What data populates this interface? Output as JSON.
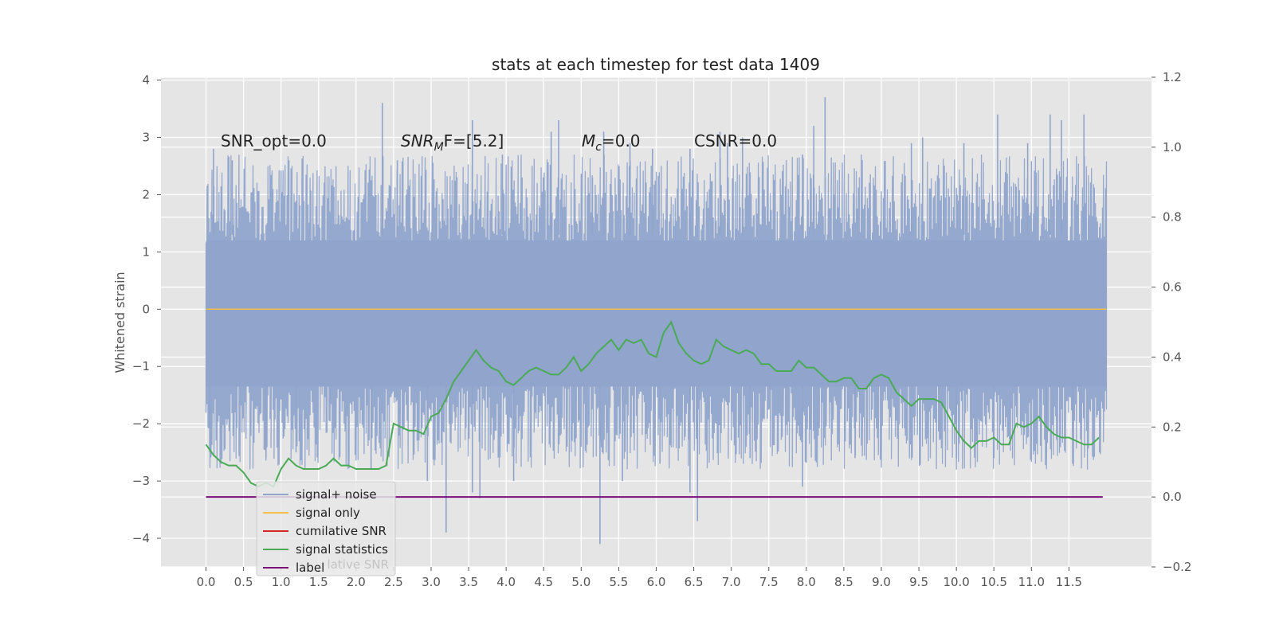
{
  "chart_data": {
    "type": "line",
    "title": "stats at each timestep for test data 1409",
    "ylabel_left": "Whitened strain",
    "ylabel_right": "",
    "xlabel": "",
    "xlim": [
      -0.6,
      12.6
    ],
    "ylim_left": [
      -4.5,
      4.05
    ],
    "ylim_right": [
      -0.2,
      1.2
    ],
    "x_ticks": [
      "0.0",
      "0.5",
      "1.0",
      "1.5",
      "2.0",
      "2.5",
      "3.0",
      "3.5",
      "4.0",
      "4.5",
      "5.0",
      "5.5",
      "6.0",
      "6.5",
      "7.0",
      "7.5",
      "8.0",
      "8.5",
      "9.0",
      "9.5",
      "10.0",
      "10.5",
      "11.0",
      "11.5"
    ],
    "y_ticks_left": [
      "4",
      "3",
      "2",
      "1",
      "0",
      "−1",
      "−2",
      "−3",
      "−4"
    ],
    "y_ticks_right": [
      "1.2",
      "1.0",
      "0.8",
      "0.6",
      "0.4",
      "0.2",
      "0.0",
      "−0.2"
    ],
    "grid": true,
    "legend_position": "lower-left",
    "annotations": {
      "snr_opt": "SNR_opt=0.0",
      "snr_mf": "SNR",
      "snr_mf_sub": "M",
      "snr_mf_rest": "F=[5.2]",
      "mc": "M",
      "mc_sub": "c",
      "mc_rest": "=0.0",
      "csnr": "CSNR=0.0"
    },
    "series": [
      {
        "name": "signal+ noise",
        "axis": "left",
        "color": "#90a4cc",
        "x_range": [
          0.0,
          12.0
        ],
        "envelope_top_typical": 1.8,
        "envelope_bottom_typical": -2.0,
        "peak_spikes": [
          [
            0.1,
            2.8
          ],
          [
            0.35,
            2.6
          ],
          [
            2.35,
            3.6
          ],
          [
            2.55,
            2.6
          ],
          [
            3.55,
            3.3
          ],
          [
            3.95,
            2.7
          ],
          [
            4.6,
            3.1
          ],
          [
            4.7,
            3.3
          ],
          [
            5.15,
            2.3
          ],
          [
            5.3,
            3.1
          ],
          [
            5.65,
            2.9
          ],
          [
            5.95,
            2.8
          ],
          [
            6.45,
            2.8
          ],
          [
            6.85,
            3.1
          ],
          [
            6.95,
            2.9
          ],
          [
            7.15,
            3.0
          ],
          [
            7.95,
            2.7
          ],
          [
            8.1,
            3.2
          ],
          [
            8.25,
            3.7
          ],
          [
            9.4,
            2.9
          ],
          [
            9.55,
            3.0
          ],
          [
            10.1,
            2.9
          ],
          [
            10.55,
            3.4
          ],
          [
            10.95,
            2.9
          ],
          [
            11.25,
            3.4
          ],
          [
            11.4,
            3.3
          ],
          [
            11.7,
            3.4
          ]
        ],
        "trough_spikes": [
          [
            0.05,
            -2.5
          ],
          [
            0.8,
            -2.6
          ],
          [
            1.2,
            -2.5
          ],
          [
            2.2,
            -2.8
          ],
          [
            2.95,
            -3.0
          ],
          [
            3.2,
            -3.9
          ],
          [
            3.55,
            -3.2
          ],
          [
            3.65,
            -3.3
          ],
          [
            4.1,
            -3.0
          ],
          [
            5.25,
            -4.1
          ],
          [
            5.55,
            -3.0
          ],
          [
            6.05,
            -2.7
          ],
          [
            6.45,
            -3.2
          ],
          [
            6.55,
            -3.7
          ],
          [
            7.25,
            -2.6
          ],
          [
            7.95,
            -3.1
          ],
          [
            8.65,
            -2.6
          ],
          [
            10.0,
            -2.6
          ],
          [
            10.5,
            -2.6
          ],
          [
            11.2,
            -2.5
          ],
          [
            11.55,
            -2.7
          ]
        ]
      },
      {
        "name": "signal only",
        "axis": "left",
        "color": "#f5c04a",
        "x": [
          0.0,
          12.0
        ],
        "y": [
          0.0,
          0.0
        ]
      },
      {
        "name": "cumilative SNR",
        "axis": "right",
        "color": "#d62728",
        "x": [],
        "y": []
      },
      {
        "name": "signal statistics",
        "axis": "right",
        "color": "#4aaa55",
        "x": [
          0.0,
          0.1,
          0.2,
          0.3,
          0.4,
          0.5,
          0.6,
          0.7,
          0.8,
          0.9,
          1.0,
          1.1,
          1.2,
          1.3,
          1.4,
          1.5,
          1.6,
          1.7,
          1.8,
          1.9,
          2.0,
          2.1,
          2.2,
          2.3,
          2.4,
          2.5,
          2.6,
          2.7,
          2.8,
          2.9,
          3.0,
          3.1,
          3.2,
          3.3,
          3.4,
          3.5,
          3.6,
          3.7,
          3.8,
          3.9,
          4.0,
          4.1,
          4.2,
          4.3,
          4.4,
          4.5,
          4.6,
          4.7,
          4.8,
          4.9,
          5.0,
          5.1,
          5.2,
          5.3,
          5.4,
          5.5,
          5.6,
          5.7,
          5.8,
          5.9,
          6.0,
          6.1,
          6.2,
          6.3,
          6.4,
          6.5,
          6.6,
          6.7,
          6.8,
          6.9,
          7.0,
          7.1,
          7.2,
          7.3,
          7.4,
          7.5,
          7.6,
          7.7,
          7.8,
          7.9,
          8.0,
          8.1,
          8.2,
          8.3,
          8.4,
          8.5,
          8.6,
          8.7,
          8.8,
          8.9,
          9.0,
          9.1,
          9.2,
          9.3,
          9.4,
          9.5,
          9.6,
          9.7,
          9.8,
          9.9,
          10.0,
          10.1,
          10.2,
          10.3,
          10.4,
          10.5,
          10.6,
          10.7,
          10.8,
          10.9,
          11.0,
          11.1,
          11.2,
          11.3,
          11.4,
          11.5,
          11.6,
          11.7,
          11.8,
          11.9
        ],
        "y": [
          0.15,
          0.12,
          0.1,
          0.09,
          0.09,
          0.07,
          0.04,
          0.03,
          0.04,
          0.03,
          0.08,
          0.11,
          0.09,
          0.08,
          0.08,
          0.08,
          0.09,
          0.11,
          0.09,
          0.09,
          0.08,
          0.08,
          0.08,
          0.08,
          0.09,
          0.21,
          0.2,
          0.19,
          0.19,
          0.18,
          0.23,
          0.24,
          0.28,
          0.33,
          0.36,
          0.39,
          0.42,
          0.39,
          0.37,
          0.36,
          0.33,
          0.32,
          0.34,
          0.36,
          0.37,
          0.36,
          0.35,
          0.35,
          0.37,
          0.4,
          0.36,
          0.38,
          0.41,
          0.43,
          0.45,
          0.42,
          0.45,
          0.44,
          0.45,
          0.41,
          0.4,
          0.47,
          0.5,
          0.44,
          0.41,
          0.39,
          0.38,
          0.39,
          0.45,
          0.43,
          0.42,
          0.41,
          0.42,
          0.41,
          0.38,
          0.38,
          0.36,
          0.36,
          0.36,
          0.39,
          0.37,
          0.37,
          0.35,
          0.33,
          0.33,
          0.34,
          0.34,
          0.31,
          0.31,
          0.34,
          0.35,
          0.34,
          0.3,
          0.28,
          0.26,
          0.28,
          0.28,
          0.28,
          0.27,
          0.23,
          0.19,
          0.16,
          0.14,
          0.16,
          0.16,
          0.17,
          0.15,
          0.15,
          0.21,
          0.2,
          0.21,
          0.23,
          0.2,
          0.18,
          0.17,
          0.17,
          0.16,
          0.15,
          0.15,
          0.17
        ]
      },
      {
        "name": "label",
        "axis": "right",
        "color": "#7b0d7b",
        "x": [
          0.0,
          11.95
        ],
        "y": [
          0.0,
          0.0
        ]
      }
    ],
    "legend_ghost_text": "lative SNR"
  }
}
